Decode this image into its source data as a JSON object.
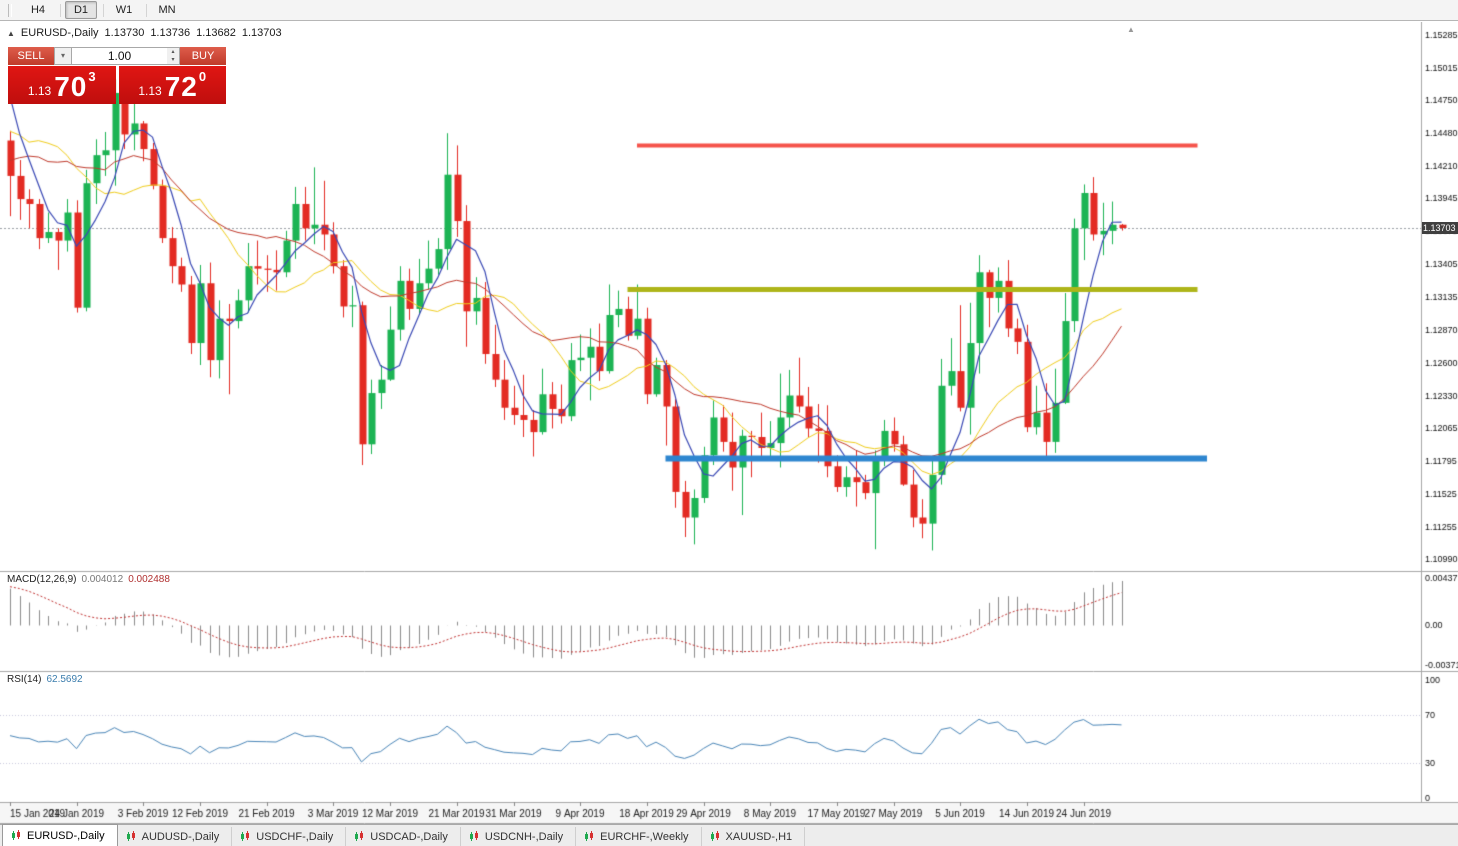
{
  "toolbar": {
    "timeframes": [
      {
        "label": "H4",
        "active": false
      },
      {
        "label": "D1",
        "active": true
      },
      {
        "label": "W1",
        "active": false
      },
      {
        "label": "MN",
        "active": false
      }
    ]
  },
  "chart": {
    "title": "EURUSD-,Daily",
    "ohlc": {
      "open": "1.13730",
      "high": "1.13736",
      "low": "1.13682",
      "close": "1.13703"
    }
  },
  "trade_panel": {
    "sell_label": "SELL",
    "buy_label": "BUY",
    "volume": "1.00",
    "sell_price": {
      "small": "1.13",
      "big": "70",
      "sup": "3"
    },
    "buy_price": {
      "small": "1.13",
      "big": "72",
      "sup": "0"
    }
  },
  "indicators": {
    "macd": {
      "label": "MACD(12,26,9)",
      "value1": "0.004012",
      "value2": "0.002488",
      "axis": [
        "0.004375",
        "0.00",
        "-0.00371"
      ]
    },
    "rsi": {
      "label": "RSI(14)",
      "value": "62.5692",
      "axis": [
        "100",
        "70",
        "30",
        "0"
      ],
      "levels": [
        70,
        30
      ]
    }
  },
  "price_axis": {
    "labels": [
      "1.15285",
      "1.15015",
      "1.14750",
      "1.14480",
      "1.14210",
      "1.13945",
      "1.13675",
      "1.13405",
      "1.13135",
      "1.12870",
      "1.12600",
      "1.12330",
      "1.12065",
      "1.11795",
      "1.11525",
      "1.11255",
      "1.10990"
    ],
    "current": "1.13703"
  },
  "time_axis": {
    "labels": [
      {
        "text": "15 Jan 2019",
        "index": 0
      },
      {
        "text": "24 Jan 2019",
        "index": 7
      },
      {
        "text": "3 Feb 2019",
        "index": 14
      },
      {
        "text": "12 Feb 2019",
        "index": 20
      },
      {
        "text": "21 Feb 2019",
        "index": 27
      },
      {
        "text": "3 Mar 2019",
        "index": 34
      },
      {
        "text": "12 Mar 2019",
        "index": 40
      },
      {
        "text": "21 Mar 2019",
        "index": 47
      },
      {
        "text": "31 Mar 2019",
        "index": 53
      },
      {
        "text": "9 Apr 2019",
        "index": 60
      },
      {
        "text": "18 Apr 2019",
        "index": 67
      },
      {
        "text": "29 Apr 2019",
        "index": 73
      },
      {
        "text": "8 May 2019",
        "index": 80
      },
      {
        "text": "17 May 2019",
        "index": 87
      },
      {
        "text": "27 May 2019",
        "index": 93
      },
      {
        "text": "5 Jun 2019",
        "index": 100
      },
      {
        "text": "14 Jun 2019",
        "index": 107
      },
      {
        "text": "24 Jun 2019",
        "index": 113
      }
    ]
  },
  "tabs": [
    {
      "label": "EURUSD-,Daily",
      "active": true
    },
    {
      "label": "AUDUSD-,Daily",
      "active": false
    },
    {
      "label": "USDCHF-,Daily",
      "active": false
    },
    {
      "label": "USDCAD-,Daily",
      "active": false
    },
    {
      "label": "USDCNH-,Daily",
      "active": false
    },
    {
      "label": "EURCHF-,Weekly",
      "active": false
    },
    {
      "label": "XAUUSD-,H1",
      "active": false
    }
  ],
  "chart_data": {
    "type": "candlestick",
    "symbol": "EURUSD-",
    "timeframe": "Daily",
    "price_range": {
      "min": 1.1099,
      "max": 1.15285
    },
    "current_price": 1.13703,
    "colors": {
      "up": "#1cb454",
      "down": "#e32b23"
    },
    "moving_averages": [
      {
        "name": "ma-mid-yellow",
        "period": 13,
        "color": "#f0cd1c",
        "width": 1
      },
      {
        "name": "ma-slow-red",
        "period": 21,
        "color": "#c0392b",
        "width": 1
      },
      {
        "name": "ma-fast-blue",
        "period": 5,
        "color": "#3a49b5",
        "width": 1.2
      }
    ],
    "hlines": [
      {
        "name": "resistance-line",
        "price": 1.1438,
        "color": "#f5534b",
        "width": 4,
        "from": 66,
        "to": 125
      },
      {
        "name": "breakout-line",
        "price": 1.132,
        "color": "#aeb519",
        "width": 5,
        "from": 65,
        "to": 125
      },
      {
        "name": "support-line",
        "price": 1.1182,
        "color": "#2e86d0",
        "width": 6,
        "from": 69,
        "to": 126
      }
    ],
    "prehistory_closes": [
      1.1306,
      1.1346,
      1.1347,
      1.1362,
      1.1378,
      1.1446,
      1.137,
      1.1367,
      1.1394,
      1.143,
      1.1435,
      1.1465,
      1.1346,
      1.1394,
      1.1398,
      1.1475,
      1.1442,
      1.15,
      1.1544,
      1.1498,
      1.1465,
      1.147
    ],
    "candles": [
      [
        1.1442,
        1.145,
        1.138,
        1.1413
      ],
      [
        1.1413,
        1.1426,
        1.1377,
        1.1394
      ],
      [
        1.1394,
        1.1402,
        1.137,
        1.139
      ],
      [
        1.139,
        1.1394,
        1.1353,
        1.1362
      ],
      [
        1.1362,
        1.1383,
        1.1358,
        1.1367
      ],
      [
        1.1367,
        1.137,
        1.1336,
        1.136
      ],
      [
        1.136,
        1.1394,
        1.1351,
        1.1383
      ],
      [
        1.1383,
        1.1393,
        1.1301,
        1.1305
      ],
      [
        1.1305,
        1.1418,
        1.1302,
        1.1407
      ],
      [
        1.1407,
        1.1443,
        1.139,
        1.143
      ],
      [
        1.143,
        1.1449,
        1.1413,
        1.1434
      ],
      [
        1.1434,
        1.1492,
        1.1405,
        1.1481
      ],
      [
        1.1481,
        1.1496,
        1.1435,
        1.1447
      ],
      [
        1.1447,
        1.1489,
        1.1434,
        1.1456
      ],
      [
        1.1456,
        1.1458,
        1.1425,
        1.1435
      ],
      [
        1.1435,
        1.144,
        1.1402,
        1.1405
      ],
      [
        1.1405,
        1.141,
        1.1358,
        1.1362
      ],
      [
        1.1362,
        1.1371,
        1.1325,
        1.1339
      ],
      [
        1.1339,
        1.1346,
        1.1318,
        1.1324
      ],
      [
        1.1324,
        1.1331,
        1.1267,
        1.1276
      ],
      [
        1.1276,
        1.134,
        1.1258,
        1.1325
      ],
      [
        1.1325,
        1.1342,
        1.1248,
        1.1262
      ],
      [
        1.1262,
        1.1311,
        1.1247,
        1.1296
      ],
      [
        1.1296,
        1.1308,
        1.1234,
        1.1294
      ],
      [
        1.1294,
        1.132,
        1.1288,
        1.1311
      ],
      [
        1.1311,
        1.1358,
        1.1301,
        1.1339
      ],
      [
        1.1339,
        1.136,
        1.1324,
        1.1337
      ],
      [
        1.1337,
        1.1348,
        1.1318,
        1.1336
      ],
      [
        1.1336,
        1.1352,
        1.1319,
        1.1334
      ],
      [
        1.1334,
        1.1368,
        1.133,
        1.136
      ],
      [
        1.136,
        1.1404,
        1.1345,
        1.139
      ],
      [
        1.139,
        1.1404,
        1.136,
        1.137
      ],
      [
        1.137,
        1.142,
        1.1357,
        1.1373
      ],
      [
        1.1373,
        1.1409,
        1.1352,
        1.1365
      ],
      [
        1.1365,
        1.1375,
        1.1333,
        1.1339
      ],
      [
        1.1339,
        1.1344,
        1.1297,
        1.1306
      ],
      [
        1.1306,
        1.1323,
        1.1289,
        1.1307
      ],
      [
        1.1307,
        1.131,
        1.1176,
        1.1193
      ],
      [
        1.1193,
        1.1246,
        1.1185,
        1.1235
      ],
      [
        1.1235,
        1.1258,
        1.1222,
        1.1246
      ],
      [
        1.1246,
        1.1306,
        1.1245,
        1.1287
      ],
      [
        1.1287,
        1.1339,
        1.1278,
        1.1327
      ],
      [
        1.1327,
        1.1337,
        1.1295,
        1.1304
      ],
      [
        1.1304,
        1.1345,
        1.1299,
        1.1325
      ],
      [
        1.1325,
        1.136,
        1.132,
        1.1337
      ],
      [
        1.1337,
        1.1362,
        1.1332,
        1.1353
      ],
      [
        1.1353,
        1.1448,
        1.1336,
        1.1414
      ],
      [
        1.1414,
        1.1438,
        1.1363,
        1.1376
      ],
      [
        1.1376,
        1.1389,
        1.1273,
        1.1302
      ],
      [
        1.1302,
        1.133,
        1.1291,
        1.1313
      ],
      [
        1.1313,
        1.1326,
        1.1259,
        1.1267
      ],
      [
        1.1267,
        1.1291,
        1.124,
        1.1246
      ],
      [
        1.1246,
        1.1262,
        1.1213,
        1.1223
      ],
      [
        1.1223,
        1.1241,
        1.1209,
        1.1217
      ],
      [
        1.1217,
        1.125,
        1.1199,
        1.1213
      ],
      [
        1.1213,
        1.1221,
        1.1183,
        1.1203
      ],
      [
        1.1203,
        1.1255,
        1.1201,
        1.1234
      ],
      [
        1.1234,
        1.1244,
        1.1206,
        1.1222
      ],
      [
        1.1222,
        1.1242,
        1.121,
        1.1216
      ],
      [
        1.1216,
        1.1276,
        1.1212,
        1.1262
      ],
      [
        1.1262,
        1.1283,
        1.1253,
        1.1264
      ],
      [
        1.1264,
        1.1288,
        1.1229,
        1.1273
      ],
      [
        1.1273,
        1.1292,
        1.1245,
        1.1253
      ],
      [
        1.1253,
        1.1324,
        1.1251,
        1.1299
      ],
      [
        1.1299,
        1.1319,
        1.1289,
        1.1304
      ],
      [
        1.1304,
        1.1314,
        1.1278,
        1.1282
      ],
      [
        1.1282,
        1.1324,
        1.1279,
        1.1296
      ],
      [
        1.1296,
        1.1305,
        1.1226,
        1.1234
      ],
      [
        1.1234,
        1.1264,
        1.1232,
        1.1258
      ],
      [
        1.1258,
        1.1262,
        1.1192,
        1.1224
      ],
      [
        1.1224,
        1.123,
        1.1141,
        1.1154
      ],
      [
        1.1154,
        1.1163,
        1.1117,
        1.1133
      ],
      [
        1.1133,
        1.1156,
        1.1111,
        1.1149
      ],
      [
        1.1149,
        1.1191,
        1.1145,
        1.1184
      ],
      [
        1.1184,
        1.1229,
        1.1176,
        1.1215
      ],
      [
        1.1215,
        1.1225,
        1.1187,
        1.1195
      ],
      [
        1.1195,
        1.1219,
        1.1155,
        1.1174
      ],
      [
        1.1174,
        1.1205,
        1.1135,
        1.12
      ],
      [
        1.12,
        1.1204,
        1.1166,
        1.1199
      ],
      [
        1.1199,
        1.1219,
        1.118,
        1.119
      ],
      [
        1.119,
        1.1212,
        1.1182,
        1.1194
      ],
      [
        1.1194,
        1.1251,
        1.1174,
        1.1215
      ],
      [
        1.1215,
        1.1254,
        1.1207,
        1.1233
      ],
      [
        1.1233,
        1.1264,
        1.1219,
        1.1224
      ],
      [
        1.1224,
        1.124,
        1.1199,
        1.1206
      ],
      [
        1.1206,
        1.1226,
        1.1178,
        1.1204
      ],
      [
        1.1204,
        1.1225,
        1.1166,
        1.1175
      ],
      [
        1.1175,
        1.1184,
        1.1154,
        1.1158
      ],
      [
        1.1158,
        1.1175,
        1.115,
        1.1166
      ],
      [
        1.1166,
        1.1188,
        1.1142,
        1.1162
      ],
      [
        1.1162,
        1.1168,
        1.1148,
        1.1153
      ],
      [
        1.1153,
        1.1188,
        1.1107,
        1.1182
      ],
      [
        1.1182,
        1.1213,
        1.1175,
        1.1204
      ],
      [
        1.1204,
        1.1215,
        1.1187,
        1.1193
      ],
      [
        1.1193,
        1.12,
        1.1159,
        1.116
      ],
      [
        1.116,
        1.1172,
        1.1125,
        1.1133
      ],
      [
        1.1133,
        1.1148,
        1.1116,
        1.1128
      ],
      [
        1.1128,
        1.1182,
        1.1106,
        1.1168
      ],
      [
        1.1168,
        1.1263,
        1.116,
        1.1241
      ],
      [
        1.1241,
        1.128,
        1.1233,
        1.1253
      ],
      [
        1.1253,
        1.1307,
        1.122,
        1.1223
      ],
      [
        1.1223,
        1.1309,
        1.1201,
        1.1276
      ],
      [
        1.1276,
        1.1348,
        1.1251,
        1.1334
      ],
      [
        1.1334,
        1.1336,
        1.1289,
        1.1313
      ],
      [
        1.1313,
        1.1338,
        1.1301,
        1.1327
      ],
      [
        1.1327,
        1.1344,
        1.1281,
        1.1288
      ],
      [
        1.1288,
        1.1296,
        1.1267,
        1.1277
      ],
      [
        1.1277,
        1.1291,
        1.1203,
        1.1207
      ],
      [
        1.1207,
        1.1241,
        1.1201,
        1.1219
      ],
      [
        1.1219,
        1.1243,
        1.1181,
        1.1195
      ],
      [
        1.1195,
        1.1255,
        1.1186,
        1.1227
      ],
      [
        1.1227,
        1.1317,
        1.1226,
        1.1294
      ],
      [
        1.1294,
        1.1378,
        1.1285,
        1.137
      ],
      [
        1.137,
        1.1406,
        1.1344,
        1.1399
      ],
      [
        1.1399,
        1.1412,
        1.136,
        1.1365
      ],
      [
        1.1365,
        1.1391,
        1.1348,
        1.1368
      ],
      [
        1.1368,
        1.1392,
        1.1357,
        1.1373
      ],
      [
        1.1373,
        1.13736,
        1.13682,
        1.13703
      ]
    ]
  }
}
